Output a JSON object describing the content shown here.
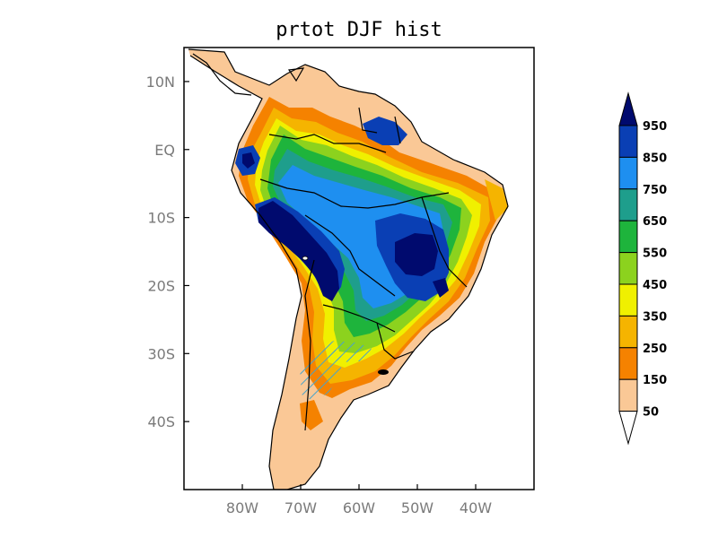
{
  "title": "prtot DJF hist",
  "map": {
    "lon_range": [
      -90,
      -30
    ],
    "lat_range": [
      -50,
      15
    ],
    "lat_ticks": [
      {
        "label": "10N",
        "lat": 10
      },
      {
        "label": "EQ",
        "lat": 0
      },
      {
        "label": "10S",
        "lat": -10
      },
      {
        "label": "20S",
        "lat": -20
      },
      {
        "label": "30S",
        "lat": -30
      },
      {
        "label": "40S",
        "lat": -40
      }
    ],
    "lon_ticks": [
      {
        "label": "80W",
        "lon": -80
      },
      {
        "label": "70W",
        "lon": -70
      },
      {
        "label": "60W",
        "lon": -60
      },
      {
        "label": "50W",
        "lon": -50
      },
      {
        "label": "40W",
        "lon": -40
      }
    ],
    "hatch_color": "#4aa3c8"
  },
  "colorbar": {
    "labels": [
      "950",
      "850",
      "750",
      "650",
      "550",
      "450",
      "350",
      "250",
      "150",
      "50"
    ],
    "colors": [
      "#000a6e",
      "#0a3fb4",
      "#1e8ff0",
      "#1e9e8c",
      "#1eb43c",
      "#8cd21e",
      "#f0f000",
      "#f5b400",
      "#f58200",
      "#fac896",
      "#ffffff"
    ]
  }
}
